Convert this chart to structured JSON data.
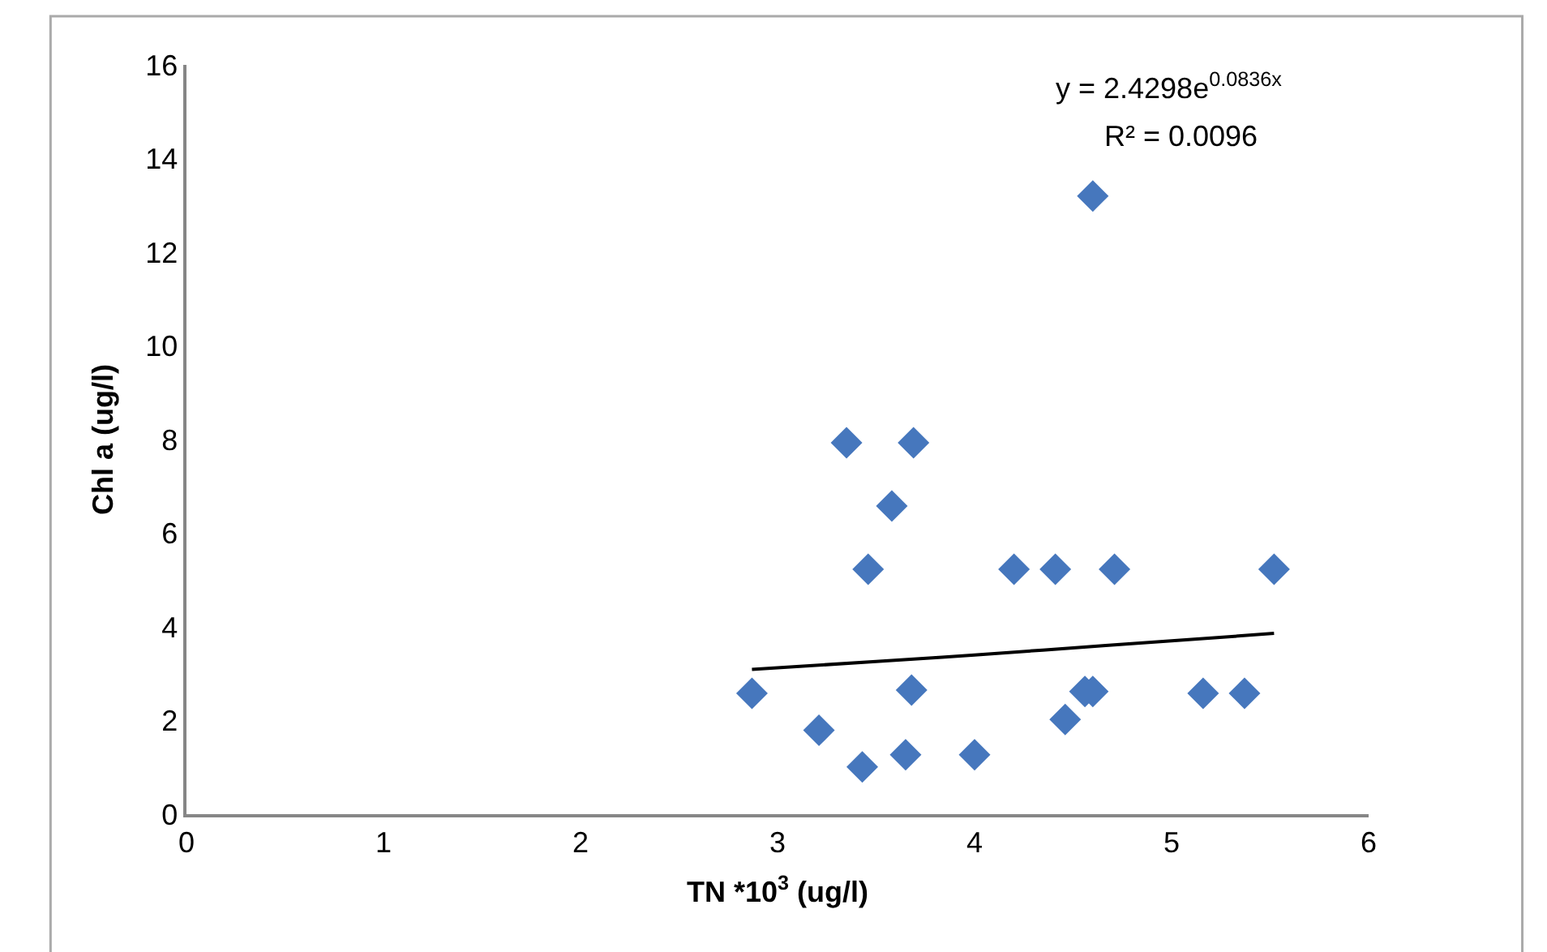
{
  "chart_data": {
    "type": "scatter",
    "xlabel": "TN *10$^{3}$ (ug/l)",
    "ylabel": "Chl a (ug/l)",
    "xlim": [
      0,
      6
    ],
    "xticks": [
      0,
      1,
      2,
      3,
      4,
      5,
      6
    ],
    "ylim": [
      0,
      16
    ],
    "yticks": [
      0,
      2,
      4,
      6,
      8,
      10,
      12,
      14,
      16
    ],
    "marker": "diamond",
    "series": [
      {
        "color": "#4677bd",
        "x": [
          2.87,
          3.21,
          3.43,
          3.65,
          3.68,
          4.0,
          4.46,
          4.56,
          4.6,
          5.16,
          5.37,
          3.35,
          3.69,
          3.58,
          3.46,
          4.2,
          4.41,
          4.71,
          5.52,
          4.6
        ],
        "values": [
          2.58,
          1.79,
          1.01,
          1.27,
          2.65,
          1.27,
          2.02,
          2.62,
          2.62,
          2.58,
          2.58,
          7.93,
          7.93,
          6.58,
          5.23,
          5.23,
          5.23,
          5.23,
          5.23,
          13.2
        ]
      },
      {
        "type": "line",
        "color": "#000000",
        "marker": "none",
        "line_style": "solid",
        "x": [
          2.87,
          3.5,
          4.0,
          4.5,
          5.0,
          5.52
        ],
        "values": [
          3.09,
          3.26,
          3.4,
          3.55,
          3.7,
          3.86
        ]
      }
    ],
    "annotations": [
      "y = 2.4298e$^{0.0836x}$",
      "R² = 0.0096"
    ]
  }
}
